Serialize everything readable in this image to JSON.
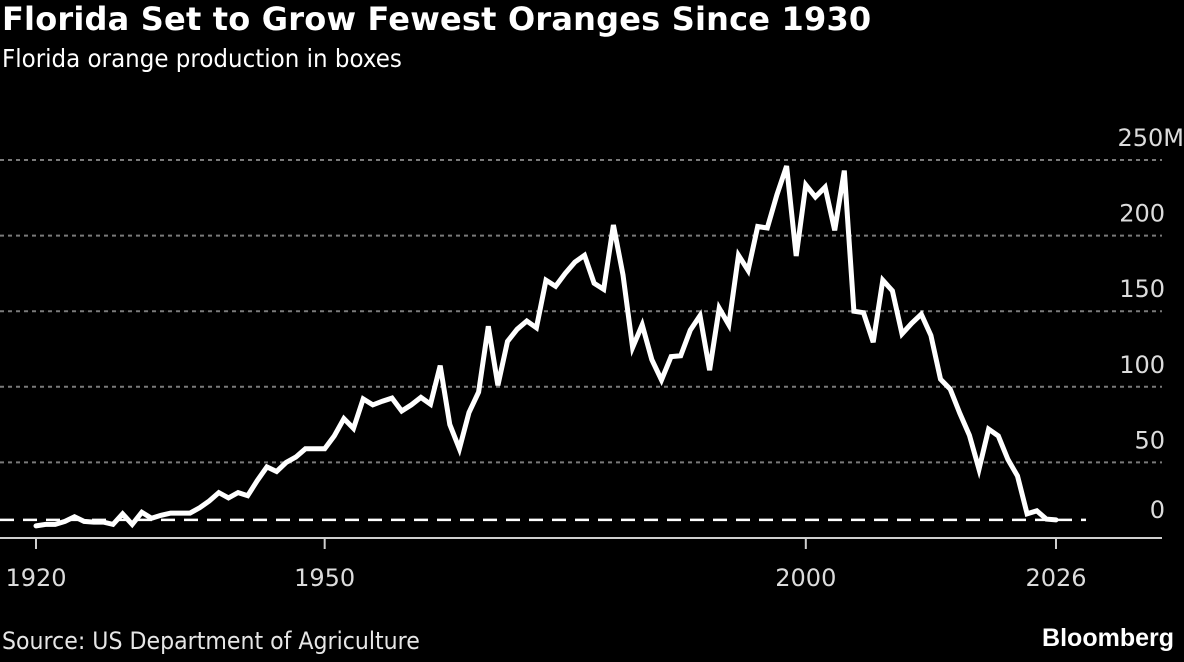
{
  "header": {
    "title": "Florida Set to Grow Fewest Oranges Since 1930",
    "subtitle": "Florida orange production in boxes"
  },
  "footer": {
    "source": "Source: US Department of Agriculture",
    "logo": "Bloomberg"
  },
  "colors": {
    "background": "#000000",
    "line": "#ffffff",
    "grid": "#7a7a7a",
    "axis": "#cfcfcf",
    "tick_text": "#dcdcdc"
  },
  "chart_data": {
    "type": "line",
    "title": "Florida Set to Grow Fewest Oranges Since 1930",
    "subtitle": "Florida orange production in boxes",
    "xlabel": "",
    "ylabel": "",
    "xlim": [
      1920,
      2026
    ],
    "ylim": [
      0,
      250
    ],
    "x_ticks": [
      1920,
      1950,
      2000,
      2026
    ],
    "x_tick_labels": [
      "1920",
      "1950",
      "2000",
      "2026"
    ],
    "y_ticks": [
      0,
      50,
      100,
      150,
      200,
      250
    ],
    "y_tick_labels": [
      "0",
      "50",
      "100",
      "150",
      "200",
      "250M"
    ],
    "grid": true,
    "reference_line": {
      "value": 12,
      "style": "dashed"
    },
    "series": [
      {
        "name": "Florida orange production (million boxes)",
        "x": [
          1920,
          1921,
          1922,
          1923,
          1924,
          1925,
          1926,
          1927,
          1928,
          1929,
          1930,
          1931,
          1932,
          1933,
          1934,
          1935,
          1936,
          1937,
          1938,
          1939,
          1940,
          1941,
          1942,
          1943,
          1944,
          1945,
          1946,
          1947,
          1948,
          1949,
          1950,
          1951,
          1952,
          1953,
          1954,
          1955,
          1956,
          1957,
          1958,
          1959,
          1960,
          1961,
          1962,
          1963,
          1964,
          1965,
          1966,
          1967,
          1968,
          1969,
          1970,
          1971,
          1972,
          1973,
          1974,
          1975,
          1976,
          1977,
          1978,
          1979,
          1980,
          1981,
          1982,
          1983,
          1984,
          1985,
          1986,
          1987,
          1988,
          1989,
          1990,
          1991,
          1992,
          1993,
          1994,
          1995,
          1996,
          1997,
          1998,
          1999,
          2000,
          2001,
          2002,
          2003,
          2004,
          2005,
          2006,
          2007,
          2008,
          2009,
          2010,
          2011,
          2012,
          2013,
          2014,
          2015,
          2016,
          2017,
          2018,
          2019,
          2020,
          2021,
          2022,
          2023,
          2024,
          2025,
          2026
        ],
        "values": [
          8,
          9,
          9,
          11,
          14,
          11,
          10.5,
          10.5,
          9,
          16,
          9,
          17,
          13,
          15,
          16.5,
          16.5,
          16.5,
          20,
          24.5,
          30,
          26.5,
          30,
          28,
          38,
          47,
          44,
          50,
          53.5,
          59,
          59,
          59,
          67.5,
          79,
          72.5,
          92,
          88,
          90.5,
          92.5,
          84,
          88,
          93,
          88.5,
          114,
          75,
          59,
          83,
          96.5,
          140,
          101,
          130,
          138,
          143.5,
          139,
          170.5,
          166.5,
          175,
          182.5,
          187,
          168.5,
          164.5,
          207,
          174,
          126,
          141,
          118,
          104.5,
          120,
          120.5,
          137.5,
          147,
          111,
          152,
          141,
          187,
          177,
          206,
          205,
          227,
          246,
          186.5,
          233.5,
          225.5,
          232,
          203.5,
          243,
          150,
          149,
          129.5,
          170.5,
          163.5,
          135,
          142,
          148,
          134,
          105,
          98.5,
          82.5,
          68,
          45.5,
          72,
          67.5,
          52,
          41,
          16,
          18,
          12.5,
          12
        ]
      }
    ]
  }
}
